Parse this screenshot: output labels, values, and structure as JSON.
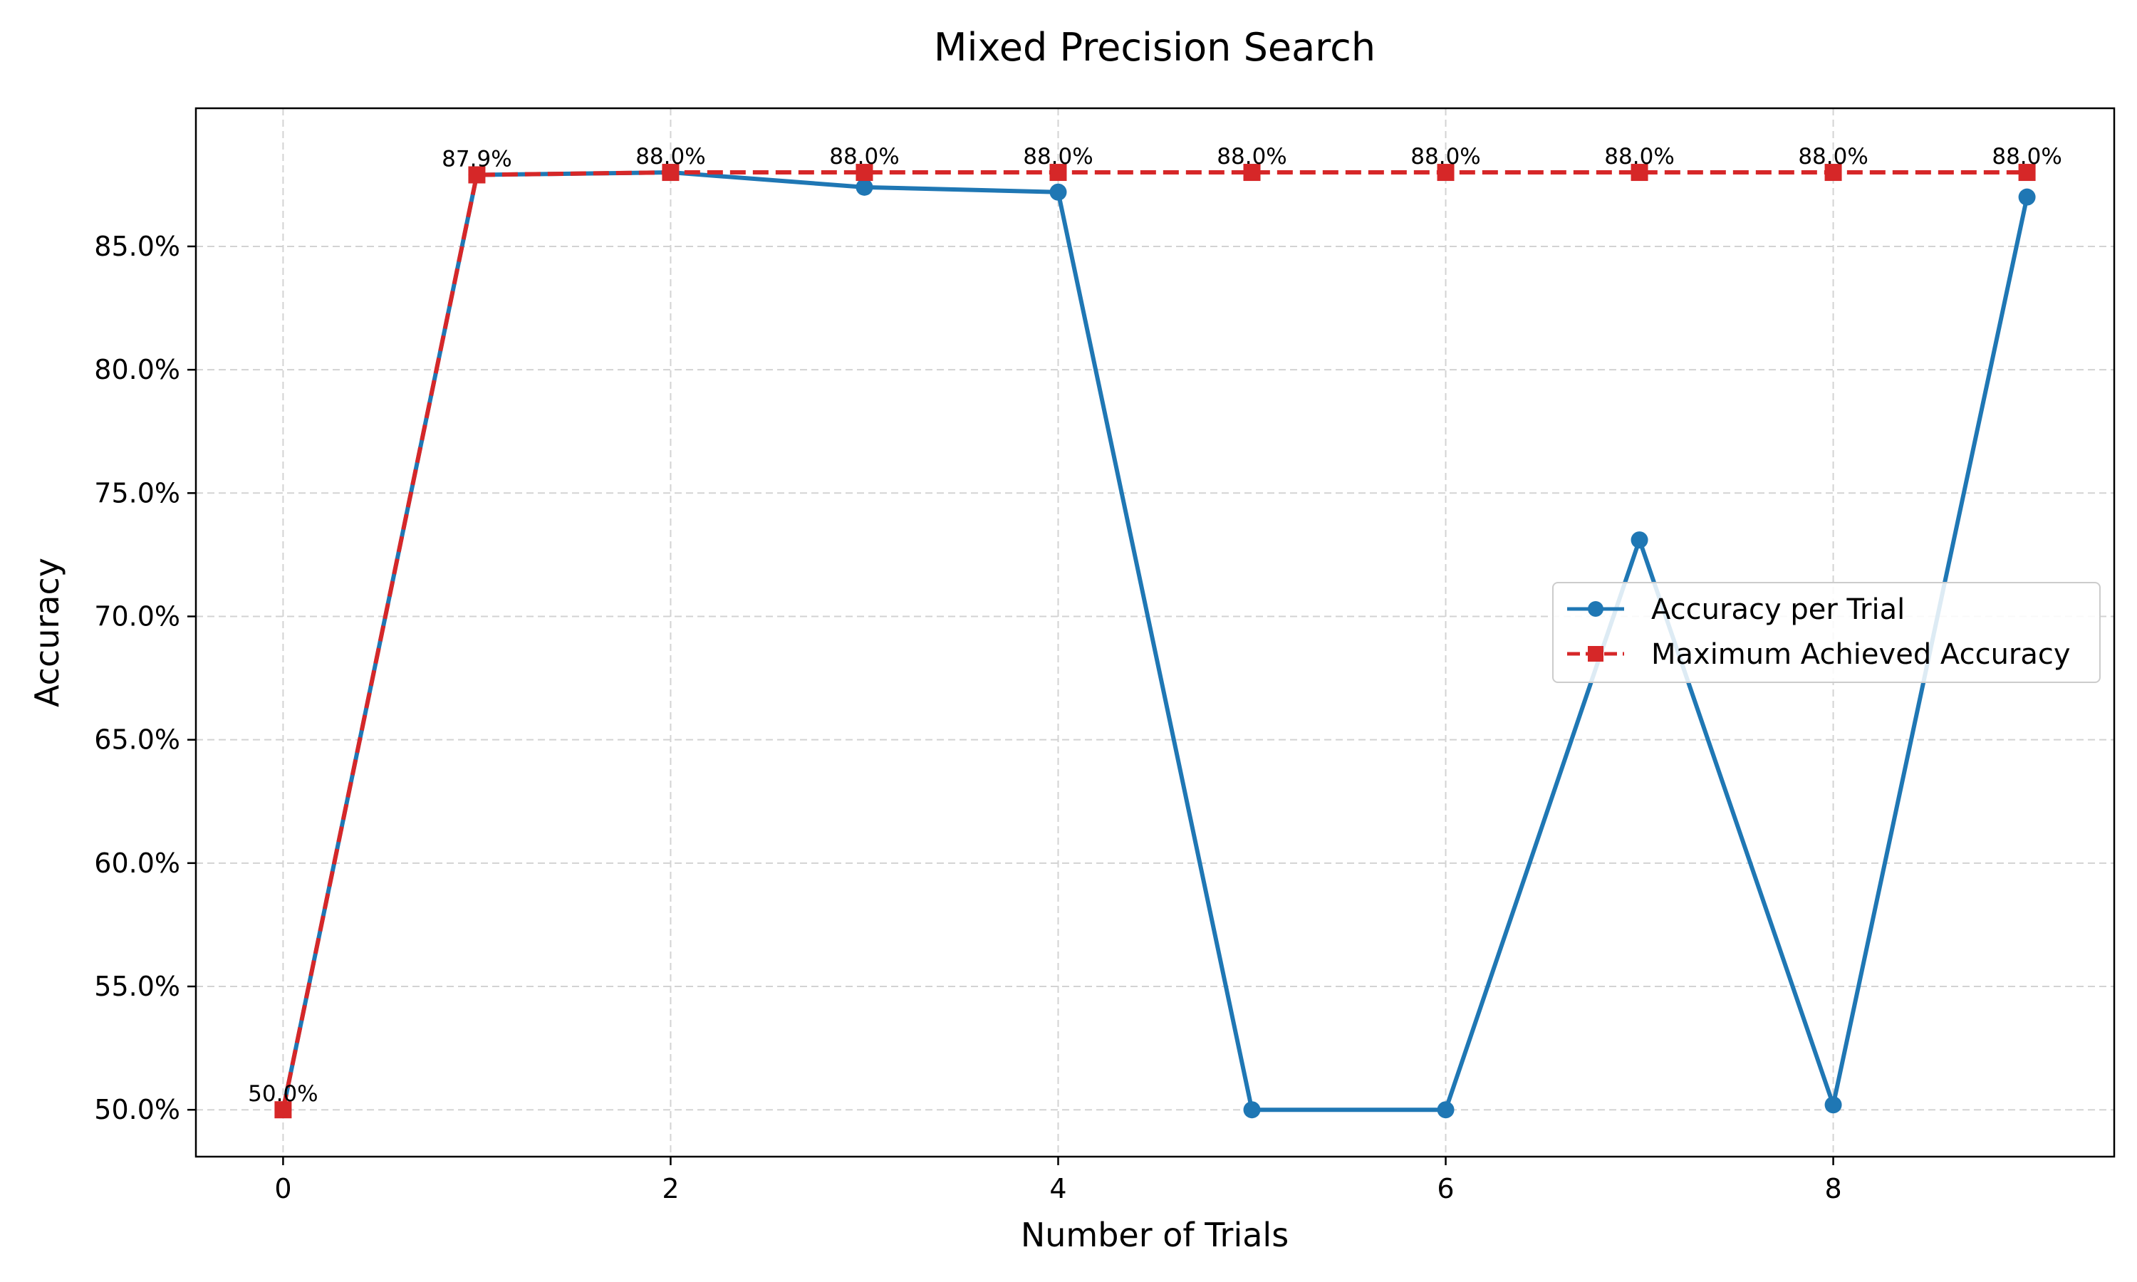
{
  "chart_data": {
    "type": "line",
    "title": "Mixed Precision Search",
    "xlabel": "Number of Trials",
    "ylabel": "Accuracy",
    "x": [
      0,
      1,
      2,
      3,
      4,
      5,
      6,
      7,
      8,
      9
    ],
    "xlim": [
      -0.45,
      9.45
    ],
    "ylim": [
      48.1,
      90.6
    ],
    "xticks": [
      0,
      2,
      4,
      6,
      8
    ],
    "yticks": [
      50,
      55,
      60,
      65,
      70,
      75,
      80,
      85
    ],
    "ytick_labels": [
      "50.0%",
      "55.0%",
      "60.0%",
      "65.0%",
      "70.0%",
      "75.0%",
      "80.0%",
      "85.0%"
    ],
    "grid": true,
    "legend_position": "center-right",
    "series": [
      {
        "name": "Accuracy per Trial",
        "color": "#1f77b4",
        "marker": "circle",
        "linestyle": "solid",
        "values": [
          50.0,
          87.9,
          88.0,
          87.4,
          87.2,
          50.0,
          50.0,
          73.1,
          50.2,
          87.0
        ]
      },
      {
        "name": "Maximum Achieved Accuracy",
        "color": "#d62728",
        "marker": "square",
        "linestyle": "dashed",
        "values": [
          50.0,
          87.9,
          88.0,
          88.0,
          88.0,
          88.0,
          88.0,
          88.0,
          88.0,
          88.0
        ]
      }
    ],
    "annotations": [
      "50.0%",
      "87.9%",
      "88.0%",
      "88.0%",
      "88.0%",
      "88.0%",
      "88.0%",
      "88.0%",
      "88.0%",
      "88.0%"
    ]
  }
}
